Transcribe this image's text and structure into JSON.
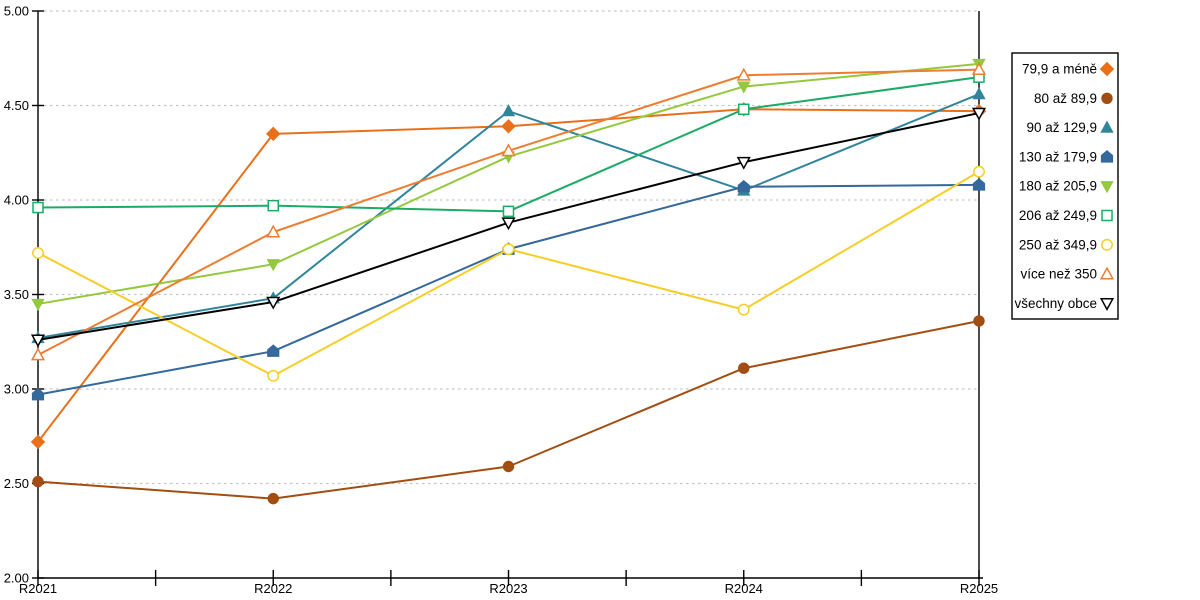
{
  "chart_data": {
    "type": "line",
    "title": "",
    "xlabel": "",
    "ylabel": "",
    "categories": [
      "R2021",
      "R2022",
      "R2023",
      "R2024",
      "R2025"
    ],
    "ylim": [
      2.0,
      5.0
    ],
    "y_tick_step": 0.5,
    "y_tick_labels": [
      "5.00",
      "4.50",
      "4.00",
      "3.50",
      "3.00",
      "2.50",
      "2.00"
    ],
    "grid": "horizontal dashed gridlines every 0.50",
    "legend_position": "right-outside",
    "series": [
      {
        "name": "79,9 a méně",
        "marker": "diamond",
        "fill_style": "filled",
        "color": "#E8701A",
        "values": [
          2.72,
          4.35,
          4.39,
          4.48,
          4.47
        ]
      },
      {
        "name": "80 až 89,9",
        "marker": "circle",
        "fill_style": "filled",
        "color": "#A24D12",
        "values": [
          2.51,
          2.42,
          2.59,
          3.11,
          3.36
        ]
      },
      {
        "name": "90 až 129,9",
        "marker": "triangle-up",
        "fill_style": "filled",
        "color": "#31859B",
        "values": [
          3.27,
          3.48,
          4.47,
          4.05,
          4.56
        ]
      },
      {
        "name": "130 až 179,9",
        "marker": "pentagon",
        "fill_style": "filled",
        "color": "#35689B",
        "values": [
          2.97,
          3.2,
          3.74,
          4.07,
          4.08
        ]
      },
      {
        "name": "180 až 205,9",
        "marker": "triangle-down",
        "fill_style": "filled",
        "color": "#94C83D",
        "values": [
          3.45,
          3.66,
          4.23,
          4.6,
          4.72
        ]
      },
      {
        "name": "206 až 249,9",
        "marker": "square",
        "fill_style": "hollow",
        "color": "#1CAB66",
        "values": [
          3.96,
          3.97,
          3.94,
          4.48,
          4.65
        ]
      },
      {
        "name": "250 až 349,9",
        "marker": "circle",
        "fill_style": "hollow",
        "color": "#F7CE26",
        "values": [
          3.72,
          3.07,
          3.74,
          3.42,
          4.15
        ]
      },
      {
        "name": "více než 350",
        "marker": "triangle-up",
        "fill_style": "hollow",
        "color": "#ED7D31",
        "values": [
          3.18,
          3.83,
          4.26,
          4.66,
          4.69
        ]
      },
      {
        "name": "všechny obce",
        "marker": "triangle-down",
        "fill_style": "hollow",
        "color": "#000000",
        "values": [
          3.26,
          3.46,
          3.88,
          4.2,
          4.46
        ]
      }
    ],
    "colors": {
      "gridline": "#C6C6C6",
      "axis": "#000000",
      "plot_right_border": "#000000",
      "legend_border": "#000000",
      "background": "#FFFFFF"
    }
  }
}
